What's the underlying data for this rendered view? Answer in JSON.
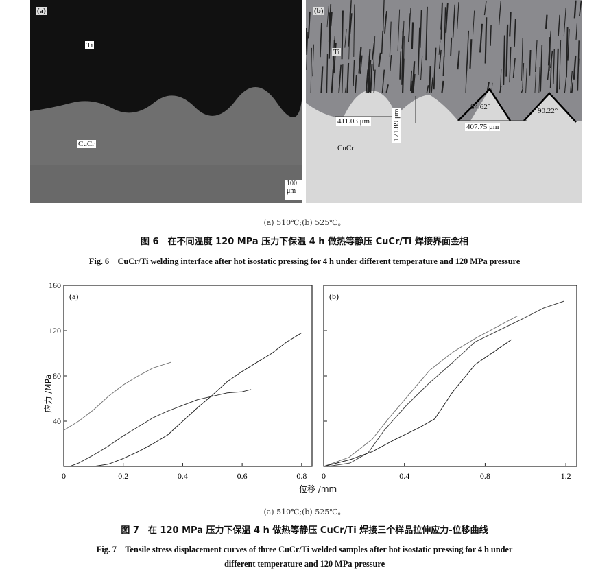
{
  "fig6": {
    "panel_a": {
      "label": "(a)",
      "ti": "Ti",
      "cucr": "CuCr",
      "scale_bar": "100 μm"
    },
    "panel_b": {
      "label": "(b)",
      "ti": "Ti",
      "cucr": "CuCr",
      "m1": "411.03 μm",
      "m2": "171.89 μm",
      "m3": "407.75 μm",
      "angle1": "84.62°",
      "angle2": "90.22°"
    },
    "subcaption": "(a) 510℃;(b) 525℃。",
    "caption_zh": "图 6　在不同温度 120 MPa 压力下保温 4 h 做热等静压 CuCr/Ti 焊接界面金相",
    "caption_en": "Fig. 6　CuCr/Ti welding interface after hot isostatic pressing for 4 h under different temperature and 120 MPa pressure"
  },
  "chart_data": [
    {
      "type": "line",
      "panel_label": "(a)",
      "xlabel": "位移 /mm",
      "ylabel": "应力 /MPa",
      "xlim": [
        0,
        0.835
      ],
      "ylim": [
        0,
        160
      ],
      "xticks": [
        0,
        0.2,
        0.4,
        0.6,
        0.8
      ],
      "xtick_labels": [
        "0",
        "0.2",
        "0.4",
        "0.6",
        "0.8"
      ],
      "yticks": [
        40,
        80,
        120,
        160
      ],
      "ytick_labels": [
        "40",
        "80",
        "120",
        "160"
      ],
      "grid": false,
      "series": [
        {
          "color": "#777",
          "x": [
            0,
            0.05,
            0.1,
            0.15,
            0.2,
            0.25,
            0.3,
            0.36
          ],
          "y": [
            32,
            40,
            50,
            62,
            72,
            80,
            87,
            92
          ]
        },
        {
          "color": "#333",
          "x": [
            0.02,
            0.05,
            0.1,
            0.15,
            0.2,
            0.25,
            0.3,
            0.35,
            0.4,
            0.45,
            0.5,
            0.55,
            0.6,
            0.63
          ],
          "y": [
            0,
            3,
            10,
            18,
            27,
            35,
            43,
            49,
            54,
            59,
            62,
            65,
            66,
            68
          ]
        },
        {
          "color": "#222",
          "x": [
            0,
            0.1,
            0.15,
            0.2,
            0.25,
            0.3,
            0.35,
            0.4,
            0.45,
            0.5,
            0.55,
            0.6,
            0.65,
            0.7,
            0.75,
            0.8
          ],
          "y": [
            0,
            0,
            2,
            7,
            13,
            20,
            28,
            40,
            52,
            63,
            75,
            84,
            92,
            100,
            110,
            118
          ]
        }
      ]
    },
    {
      "type": "line",
      "panel_label": "(b)",
      "xlabel": "位移 /mm",
      "ylabel": "应力 /MPa",
      "xlim": [
        0,
        1.254
      ],
      "ylim": [
        0,
        160
      ],
      "xticks": [
        0,
        0.4,
        0.8,
        1.2
      ],
      "xtick_labels": [
        "0",
        "0.4",
        "0.8",
        "1.2"
      ],
      "yticks": [
        40,
        80,
        120
      ],
      "grid": false,
      "series": [
        {
          "color": "#777",
          "x": [
            0,
            0.125,
            0.24,
            0.32,
            0.42,
            0.525,
            0.64,
            0.75,
            0.865,
            0.96
          ],
          "y": [
            0,
            8,
            24,
            42,
            63,
            85,
            101,
            113,
            124,
            133
          ]
        },
        {
          "color": "#444",
          "x": [
            0.02,
            0.13,
            0.22,
            0.3,
            0.41,
            0.525,
            0.64,
            0.75,
            0.865,
            0.98,
            1.09,
            1.19
          ],
          "y": [
            0,
            3,
            12,
            32,
            54,
            74,
            92,
            110,
            120,
            130,
            140,
            146
          ]
        },
        {
          "color": "#222",
          "x": [
            0,
            0.13,
            0.24,
            0.355,
            0.47,
            0.55,
            0.64,
            0.75,
            0.865,
            0.93
          ],
          "y": [
            0,
            6,
            13,
            24,
            34,
            42,
            66,
            90,
            104,
            112
          ]
        }
      ]
    }
  ],
  "fig7": {
    "subcaption": "(a) 510℃;(b) 525℃。",
    "caption_zh": "图 7　在 120 MPa 压力下保温 4 h 做热等静压 CuCr/Ti 焊接三个样品拉伸应力-位移曲线",
    "caption_en_1": "Fig. 7　Tensile stress displacement curves of three CuCr/Ti welded samples after hot isostatic pressing for 4 h under",
    "caption_en_2": "different temperature and 120 MPa pressure"
  }
}
